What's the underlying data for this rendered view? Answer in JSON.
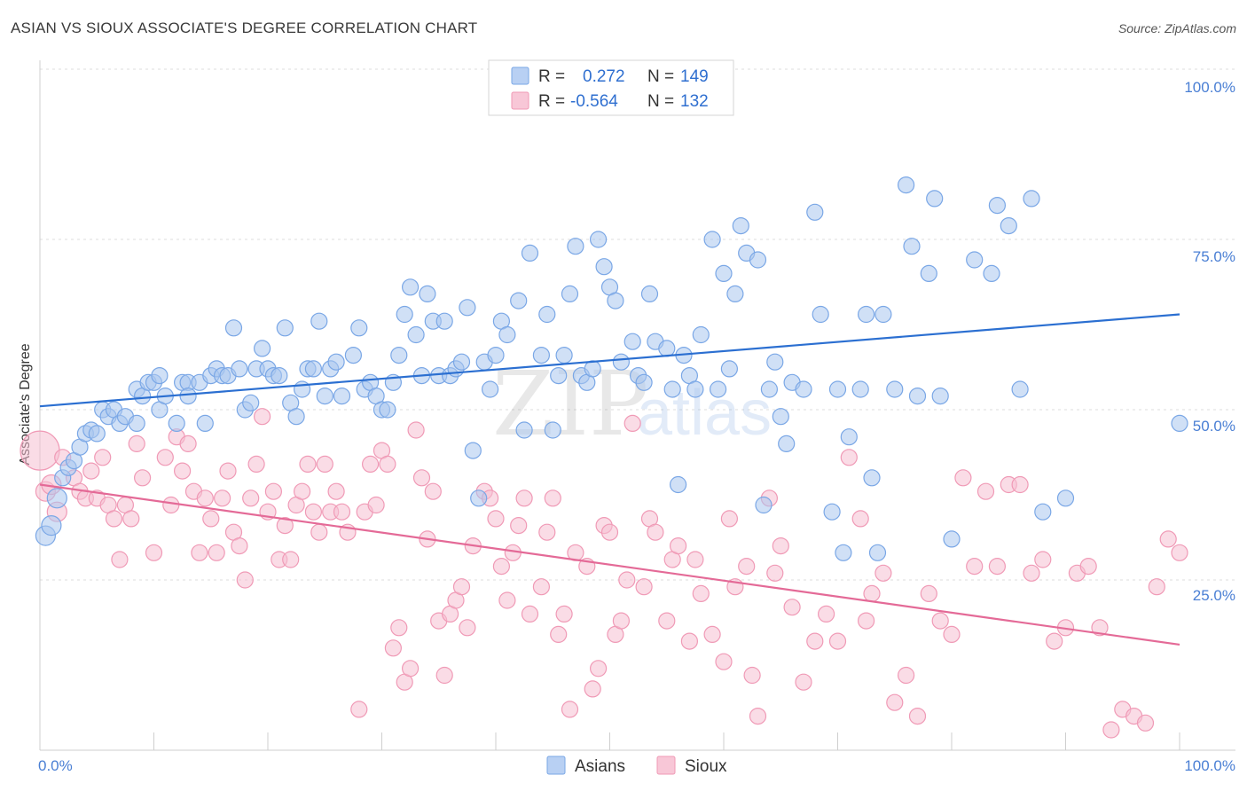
{
  "title": "ASIAN VS SIOUX ASSOCIATE'S DEGREE CORRELATION CHART",
  "source": "Source: ZipAtlas.com",
  "watermark": {
    "zip": "ZIP",
    "atlas": "atlas"
  },
  "legend_top": [
    {
      "r_label": "R =",
      "r_value": "0.272",
      "n_label": "N =",
      "n_value": "149",
      "color": "#7aa7e6"
    },
    {
      "r_label": "R =",
      "r_value": "-0.564",
      "n_label": "N =",
      "n_value": "132",
      "color": "#f09ab6"
    }
  ],
  "legend_bottom": [
    {
      "label": "Asians",
      "color": "#7aa7e6"
    },
    {
      "label": "Sioux",
      "color": "#f09ab6"
    }
  ],
  "colors": {
    "asian_line": "#2b6fd1",
    "sioux_line": "#e46a97",
    "asian_fill": "#a9c6ef",
    "sioux_fill": "#f6bfd1",
    "axis_text": "#4a7fd4"
  },
  "chart_data": {
    "type": "scatter",
    "title": "ASIAN VS SIOUX ASSOCIATE'S DEGREE CORRELATION CHART",
    "xlabel": "",
    "ylabel": "Associate's Degree",
    "xlim": [
      0,
      100
    ],
    "ylim": [
      0,
      100
    ],
    "x_tick_labels": [
      "0.0%",
      "100.0%"
    ],
    "y_tick_labels": [
      "100.0%",
      "75.0%",
      "50.0%",
      "25.0%"
    ],
    "y_ticks": [
      100,
      75,
      50,
      25
    ],
    "grid": true,
    "legend_position": "top-center",
    "series": [
      {
        "name": "Asians",
        "R": 0.272,
        "N": 149,
        "trend": {
          "x": [
            0,
            100
          ],
          "y": [
            50.5,
            64.0
          ]
        },
        "points": [
          [
            0.5,
            31.5
          ],
          [
            1,
            33
          ],
          [
            1.5,
            37
          ],
          [
            2,
            40
          ],
          [
            2.5,
            41.5
          ],
          [
            3,
            42.5
          ],
          [
            3.5,
            44.5
          ],
          [
            4,
            46.5
          ],
          [
            4.5,
            47
          ],
          [
            5,
            46.5
          ],
          [
            5.5,
            50
          ],
          [
            6,
            49
          ],
          [
            6.5,
            50
          ],
          [
            7,
            48
          ],
          [
            7.5,
            49
          ],
          [
            8.5,
            48
          ],
          [
            8.5,
            53
          ],
          [
            9,
            52
          ],
          [
            9.5,
            54
          ],
          [
            10,
            54
          ],
          [
            10.5,
            55
          ],
          [
            10.5,
            50
          ],
          [
            11,
            52
          ],
          [
            12,
            48
          ],
          [
            12.5,
            54
          ],
          [
            13,
            54
          ],
          [
            13,
            52
          ],
          [
            14,
            54
          ],
          [
            14.5,
            48
          ],
          [
            15,
            55
          ],
          [
            15.5,
            56
          ],
          [
            16,
            55
          ],
          [
            16.5,
            55
          ],
          [
            17,
            62
          ],
          [
            17.5,
            56
          ],
          [
            18,
            50
          ],
          [
            18.5,
            51
          ],
          [
            19,
            56
          ],
          [
            19.5,
            59
          ],
          [
            20,
            56
          ],
          [
            20.5,
            55
          ],
          [
            21,
            55
          ],
          [
            21.5,
            62
          ],
          [
            22,
            51
          ],
          [
            22.5,
            49
          ],
          [
            23,
            53
          ],
          [
            23.5,
            56
          ],
          [
            24,
            56
          ],
          [
            24.5,
            63
          ],
          [
            25,
            52
          ],
          [
            25.5,
            56
          ],
          [
            26,
            57
          ],
          [
            26.5,
            52
          ],
          [
            27.5,
            58
          ],
          [
            28,
            62
          ],
          [
            28.5,
            53
          ],
          [
            29,
            54
          ],
          [
            29.5,
            52
          ],
          [
            30,
            50
          ],
          [
            30.5,
            50
          ],
          [
            31,
            54
          ],
          [
            31.5,
            58
          ],
          [
            32,
            64
          ],
          [
            32.5,
            68
          ],
          [
            33,
            61
          ],
          [
            33.5,
            55
          ],
          [
            34,
            67
          ],
          [
            34.5,
            63
          ],
          [
            35,
            55
          ],
          [
            35.5,
            63
          ],
          [
            36,
            55
          ],
          [
            36.5,
            56
          ],
          [
            37,
            57
          ],
          [
            37.5,
            65
          ],
          [
            38,
            44
          ],
          [
            38.5,
            37
          ],
          [
            39,
            57
          ],
          [
            39.5,
            53
          ],
          [
            40,
            58
          ],
          [
            40.5,
            63
          ],
          [
            41,
            61
          ],
          [
            42,
            66
          ],
          [
            42.5,
            47
          ],
          [
            43,
            73
          ],
          [
            44,
            58
          ],
          [
            44.5,
            64
          ],
          [
            45,
            47
          ],
          [
            45.5,
            55
          ],
          [
            46,
            58
          ],
          [
            46.5,
            67
          ],
          [
            47,
            74
          ],
          [
            47.5,
            55
          ],
          [
            48,
            54
          ],
          [
            48.5,
            56
          ],
          [
            49,
            75
          ],
          [
            49.5,
            71
          ],
          [
            50,
            68
          ],
          [
            50.5,
            66
          ],
          [
            51,
            57
          ],
          [
            52,
            60
          ],
          [
            52.5,
            55
          ],
          [
            53,
            54
          ],
          [
            53.5,
            67
          ],
          [
            54,
            60
          ],
          [
            55,
            59
          ],
          [
            55.5,
            53
          ],
          [
            56,
            39
          ],
          [
            56.5,
            58
          ],
          [
            57,
            55
          ],
          [
            57.5,
            53
          ],
          [
            58,
            61
          ],
          [
            59,
            75
          ],
          [
            59.5,
            53
          ],
          [
            60,
            70
          ],
          [
            60.5,
            56
          ],
          [
            61,
            67
          ],
          [
            61.5,
            77
          ],
          [
            62,
            73
          ],
          [
            63,
            72
          ],
          [
            63.5,
            36
          ],
          [
            64,
            53
          ],
          [
            64.5,
            57
          ],
          [
            65,
            49
          ],
          [
            65.5,
            45
          ],
          [
            66,
            54
          ],
          [
            67,
            53
          ],
          [
            68,
            79
          ],
          [
            68.5,
            64
          ],
          [
            69.5,
            35
          ],
          [
            70,
            53
          ],
          [
            70.5,
            29
          ],
          [
            71,
            46
          ],
          [
            72,
            53
          ],
          [
            72.5,
            64
          ],
          [
            73,
            40
          ],
          [
            73.5,
            29
          ],
          [
            74,
            64
          ],
          [
            75,
            53
          ],
          [
            76,
            83
          ],
          [
            76.5,
            74
          ],
          [
            77,
            52
          ],
          [
            78,
            70
          ],
          [
            78.5,
            81
          ],
          [
            79,
            52
          ],
          [
            80,
            31
          ],
          [
            82,
            72
          ],
          [
            83.5,
            70
          ],
          [
            84,
            80
          ],
          [
            85,
            77
          ],
          [
            86,
            53
          ],
          [
            87,
            81
          ],
          [
            88,
            35
          ],
          [
            90,
            37
          ],
          [
            100,
            48
          ]
        ]
      },
      {
        "name": "Sioux",
        "R": -0.564,
        "N": 132,
        "trend": {
          "x": [
            0,
            100
          ],
          "y": [
            39.0,
            15.5
          ]
        },
        "points": [
          [
            0,
            44
          ],
          [
            0.5,
            38
          ],
          [
            1,
            39
          ],
          [
            1.5,
            35
          ],
          [
            2,
            43
          ],
          [
            3,
            40
          ],
          [
            3.5,
            38
          ],
          [
            4,
            37
          ],
          [
            4.5,
            41
          ],
          [
            5,
            37
          ],
          [
            5.5,
            43
          ],
          [
            6,
            36
          ],
          [
            6.5,
            34
          ],
          [
            7,
            28
          ],
          [
            7.5,
            36
          ],
          [
            8,
            34
          ],
          [
            8.5,
            45
          ],
          [
            9,
            40
          ],
          [
            10,
            29
          ],
          [
            11,
            43
          ],
          [
            11.5,
            36
          ],
          [
            12,
            46
          ],
          [
            12.5,
            41
          ],
          [
            13,
            45
          ],
          [
            13.5,
            38
          ],
          [
            14,
            29
          ],
          [
            14.5,
            37
          ],
          [
            15,
            34
          ],
          [
            15.5,
            29
          ],
          [
            16,
            37
          ],
          [
            16.5,
            41
          ],
          [
            17,
            32
          ],
          [
            17.5,
            30
          ],
          [
            18,
            25
          ],
          [
            18.5,
            37
          ],
          [
            19,
            42
          ],
          [
            19.5,
            49
          ],
          [
            20,
            35
          ],
          [
            20.5,
            38
          ],
          [
            21,
            28
          ],
          [
            21.5,
            33
          ],
          [
            22,
            28
          ],
          [
            22.5,
            36
          ],
          [
            23,
            38
          ],
          [
            23.5,
            42
          ],
          [
            24,
            35
          ],
          [
            24.5,
            32
          ],
          [
            25,
            42
          ],
          [
            25.5,
            35
          ],
          [
            26,
            38
          ],
          [
            26.5,
            35
          ],
          [
            27,
            32
          ],
          [
            28,
            6
          ],
          [
            28.5,
            35
          ],
          [
            29,
            42
          ],
          [
            29.5,
            36
          ],
          [
            30,
            44
          ],
          [
            30.5,
            42
          ],
          [
            31,
            15
          ],
          [
            31.5,
            18
          ],
          [
            32,
            10
          ],
          [
            32.5,
            12
          ],
          [
            33,
            47
          ],
          [
            33.5,
            40
          ],
          [
            34,
            31
          ],
          [
            34.5,
            38
          ],
          [
            35,
            19
          ],
          [
            35.5,
            11
          ],
          [
            36,
            20
          ],
          [
            36.5,
            22
          ],
          [
            37,
            24
          ],
          [
            37.5,
            18
          ],
          [
            38,
            30
          ],
          [
            39,
            38
          ],
          [
            39.5,
            37
          ],
          [
            40,
            34
          ],
          [
            40.5,
            27
          ],
          [
            41,
            22
          ],
          [
            41.5,
            29
          ],
          [
            42,
            33
          ],
          [
            42.5,
            37
          ],
          [
            43,
            20
          ],
          [
            44,
            24
          ],
          [
            44.5,
            32
          ],
          [
            45,
            37
          ],
          [
            45.5,
            17
          ],
          [
            46,
            20
          ],
          [
            46.5,
            6
          ],
          [
            47,
            29
          ],
          [
            48,
            27
          ],
          [
            48.5,
            9
          ],
          [
            49,
            12
          ],
          [
            49.5,
            33
          ],
          [
            50,
            32
          ],
          [
            50.5,
            17
          ],
          [
            51,
            19
          ],
          [
            51.5,
            25
          ],
          [
            52,
            48
          ],
          [
            53,
            24
          ],
          [
            53.5,
            34
          ],
          [
            54,
            32
          ],
          [
            55,
            19
          ],
          [
            55.5,
            28
          ],
          [
            56,
            30
          ],
          [
            57,
            16
          ],
          [
            57.5,
            28
          ],
          [
            58,
            23
          ],
          [
            59,
            17
          ],
          [
            60,
            13
          ],
          [
            60.5,
            34
          ],
          [
            61,
            24
          ],
          [
            62,
            27
          ],
          [
            62.5,
            11
          ],
          [
            63,
            5
          ],
          [
            64,
            37
          ],
          [
            64.5,
            26
          ],
          [
            65,
            30
          ],
          [
            66,
            21
          ],
          [
            67,
            10
          ],
          [
            68,
            16
          ],
          [
            69,
            20
          ],
          [
            70,
            16
          ],
          [
            71,
            43
          ],
          [
            72,
            34
          ],
          [
            72.5,
            19
          ],
          [
            73,
            23
          ],
          [
            74,
            26
          ],
          [
            75,
            7
          ],
          [
            76,
            11
          ],
          [
            77,
            5
          ],
          [
            78,
            23
          ],
          [
            79,
            19
          ],
          [
            80,
            17
          ],
          [
            81,
            40
          ],
          [
            82,
            27
          ],
          [
            83,
            38
          ],
          [
            84,
            27
          ],
          [
            85,
            39
          ],
          [
            86,
            39
          ],
          [
            87,
            26
          ],
          [
            88,
            28
          ],
          [
            89,
            16
          ],
          [
            90,
            18
          ],
          [
            91,
            26
          ],
          [
            92,
            27
          ],
          [
            93,
            18
          ],
          [
            94,
            3
          ],
          [
            95,
            6
          ],
          [
            96,
            5
          ],
          [
            97,
            4
          ],
          [
            98,
            24
          ],
          [
            99,
            31
          ],
          [
            100,
            29
          ]
        ]
      }
    ]
  }
}
